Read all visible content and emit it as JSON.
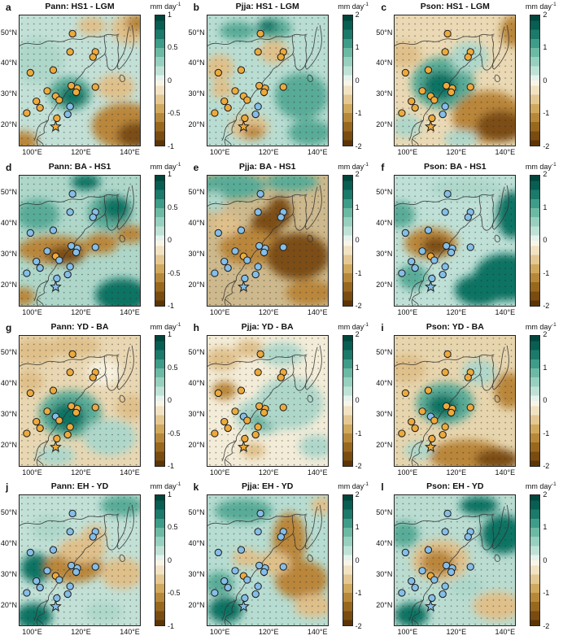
{
  "figure": {
    "x_ticks": [
      "100°E",
      "120°E",
      "140°E"
    ],
    "y_ticks": [
      "50°N",
      "40°N",
      "30°N",
      "20°N"
    ],
    "colorbar_unit": "mm day",
    "colorbar_exponent": "-1",
    "marker_colors": {
      "orange": "#edaa3c",
      "blue": "#85bee8",
      "outline": "#1a1a1a"
    },
    "field_colors": {
      "t3": "#0f7364",
      "t2": "#58ab97",
      "t1": "#aed7ca",
      "c": "#f6f1df",
      "n1": "#dfc08a",
      "n2": "#b9863b",
      "n3": "#7c4e14"
    },
    "sites": [
      [
        44,
        14
      ],
      [
        42,
        28
      ],
      [
        63,
        28
      ],
      [
        61,
        32
      ],
      [
        9,
        44
      ],
      [
        28,
        42
      ],
      [
        43,
        54
      ],
      [
        48,
        56
      ],
      [
        30,
        62
      ],
      [
        33,
        65
      ],
      [
        14,
        66
      ],
      [
        17,
        71
      ],
      [
        6,
        75
      ],
      [
        42,
        70
      ],
      [
        40,
        76
      ],
      [
        23,
        58
      ],
      [
        63,
        55
      ],
      [
        47,
        59
      ],
      [
        31,
        79
      ]
    ],
    "star_site": [
      30,
      85.5
    ],
    "panels": [
      {
        "letter": "a",
        "title": "Pann: HS1 - LGM",
        "cbar_ticks": [
          "1",
          "0.5",
          "0",
          "-0.5",
          "-1"
        ],
        "dot_color": "orange",
        "exceptions": {
          "13": "blue",
          "14": "blue"
        },
        "star_color": "orange",
        "field": {
          "base": "#c3e0d7",
          "blobs": [
            [
              60,
              8,
              12,
              7,
              "n1"
            ],
            [
              92,
              10,
              16,
              12,
              "n1"
            ],
            [
              98,
              6,
              10,
              7,
              "n2"
            ],
            [
              15,
              35,
              22,
              18,
              "t1"
            ],
            [
              42,
              60,
              18,
              13,
              "t2"
            ],
            [
              44,
              62,
              11,
              8,
              "t3"
            ],
            [
              80,
              55,
              16,
              10,
              "n1"
            ],
            [
              88,
              85,
              28,
              18,
              "n2"
            ],
            [
              97,
              92,
              16,
              10,
              "n3"
            ],
            [
              3,
              97,
              12,
              8,
              "n2"
            ]
          ]
        }
      },
      {
        "letter": "b",
        "title": "Pjja: HS1 - LGM",
        "cbar_ticks": [
          "2",
          "1",
          "0",
          "-1",
          "-2"
        ],
        "dot_color": "orange",
        "exceptions": {
          "13": "blue",
          "14": "blue"
        },
        "star_color": "orange",
        "field": {
          "base": "#b9ddd2",
          "blobs": [
            [
              10,
              40,
              12,
              10,
              "n1"
            ],
            [
              12,
              57,
              9,
              7,
              "n1"
            ],
            [
              55,
              28,
              12,
              9,
              "n1"
            ],
            [
              35,
              86,
              16,
              10,
              "n1"
            ],
            [
              38,
              90,
              9,
              5,
              "n2"
            ],
            [
              55,
              10,
              15,
              8,
              "t2"
            ],
            [
              50,
              8,
              8,
              5,
              "t3"
            ],
            [
              78,
              62,
              22,
              18,
              "t2"
            ],
            [
              85,
              90,
              18,
              10,
              "t2"
            ],
            [
              25,
              12,
              15,
              7,
              "t2"
            ]
          ]
        }
      },
      {
        "letter": "c",
        "title": "Pson: HS1 - LGM",
        "cbar_ticks": [
          "2",
          "1",
          "0",
          "-1",
          "-2"
        ],
        "dot_color": "orange",
        "exceptions": {
          "13": "blue",
          "14": "blue"
        },
        "star_color": "orange",
        "field": {
          "base": "#ead9b4",
          "blobs": [
            [
              40,
              52,
              26,
              20,
              "t2"
            ],
            [
              38,
              54,
              14,
              11,
              "t3"
            ],
            [
              62,
              32,
              16,
              12,
              "t1"
            ],
            [
              78,
              78,
              30,
              20,
              "n2"
            ],
            [
              88,
              85,
              20,
              12,
              "n3"
            ],
            [
              98,
              12,
              10,
              12,
              "n2"
            ],
            [
              8,
              30,
              14,
              10,
              "n1"
            ],
            [
              10,
              85,
              12,
              9,
              "t1"
            ],
            [
              55,
              95,
              14,
              7,
              "t1"
            ]
          ]
        }
      },
      {
        "letter": "d",
        "title": "Pann: BA - HS1",
        "cbar_ticks": [
          "1",
          "0.5",
          "0",
          "-0.5",
          "-1"
        ],
        "dot_color": "blue",
        "exceptions": {
          "8": "orange"
        },
        "star_color": "blue",
        "field": {
          "base": "#aed7ca",
          "blobs": [
            [
              75,
              28,
              18,
              14,
              "t2"
            ],
            [
              80,
              25,
              12,
              9,
              "t3"
            ],
            [
              55,
              5,
              12,
              6,
              "t3"
            ],
            [
              28,
              57,
              30,
              11,
              "n2"
            ],
            [
              38,
              61,
              15,
              7,
              "n3"
            ],
            [
              68,
              52,
              14,
              8,
              "n2"
            ],
            [
              92,
              45,
              12,
              7,
              "n2"
            ],
            [
              85,
              92,
              22,
              13,
              "t3"
            ],
            [
              3,
              93,
              10,
              7,
              "n2"
            ],
            [
              15,
              30,
              18,
              12,
              "t2"
            ]
          ]
        }
      },
      {
        "letter": "e",
        "title": "Pjja: BA - HS1",
        "cbar_ticks": [
          "2",
          "1",
          "0",
          "-1",
          "-2"
        ],
        "dot_color": "blue",
        "exceptions": {
          "8": "orange"
        },
        "star_color": "blue",
        "field": {
          "base": "#cdb98d",
          "blobs": [
            [
              20,
              8,
              28,
              10,
              "t2"
            ],
            [
              70,
              5,
              22,
              7,
              "t2"
            ],
            [
              5,
              20,
              10,
              8,
              "t1"
            ],
            [
              48,
              40,
              12,
              14,
              "n3"
            ],
            [
              60,
              28,
              10,
              12,
              "n3"
            ],
            [
              35,
              55,
              25,
              14,
              "n2"
            ],
            [
              75,
              62,
              26,
              18,
              "n3"
            ],
            [
              85,
              90,
              20,
              10,
              "n2"
            ],
            [
              15,
              38,
              12,
              9,
              "n1"
            ]
          ]
        }
      },
      {
        "letter": "f",
        "title": "Pson: BA - HS1",
        "cbar_ticks": [
          "2",
          "1",
          "0",
          "-1",
          "-2"
        ],
        "dot_color": "blue",
        "exceptions": {
          "8": "orange"
        },
        "star_color": "blue",
        "field": {
          "base": "#bfe0d6",
          "blobs": [
            [
              30,
              52,
              22,
              12,
              "n2"
            ],
            [
              34,
              54,
              11,
              7,
              "n3"
            ],
            [
              92,
              78,
              26,
              18,
              "t3"
            ],
            [
              70,
              88,
              20,
              12,
              "t3"
            ],
            [
              97,
              30,
              12,
              18,
              "t3"
            ],
            [
              15,
              78,
              12,
              10,
              "t2"
            ],
            [
              60,
              10,
              30,
              8,
              "t1"
            ],
            [
              5,
              30,
              12,
              10,
              "t2"
            ]
          ]
        }
      },
      {
        "letter": "g",
        "title": "Pann: YD - BA",
        "cbar_ticks": [
          "1",
          "0.5",
          "0",
          "-0.5",
          "-1"
        ],
        "dot_color": "orange",
        "exceptions": {
          "8": "blue"
        },
        "star_color": "orange",
        "field": {
          "base": "#e8d7b2",
          "blobs": [
            [
              12,
              12,
              18,
              10,
              "n1"
            ],
            [
              45,
              8,
              22,
              8,
              "n1"
            ],
            [
              8,
              35,
              12,
              9,
              "n1"
            ],
            [
              42,
              60,
              26,
              18,
              "t2"
            ],
            [
              40,
              62,
              14,
              11,
              "t3"
            ],
            [
              75,
              78,
              22,
              14,
              "t1"
            ],
            [
              92,
              55,
              12,
              10,
              "n1"
            ],
            [
              70,
              28,
              14,
              10,
              "c"
            ],
            [
              30,
              92,
              16,
              8,
              "t1"
            ]
          ]
        }
      },
      {
        "letter": "h",
        "title": "Pjja: YD - BA",
        "cbar_ticks": [
          "2",
          "1",
          "0",
          "-1",
          "-2"
        ],
        "dot_color": "orange",
        "exceptions": {
          "8": "blue"
        },
        "star_color": "orange",
        "field": {
          "base": "#f3ecd8",
          "blobs": [
            [
              12,
              18,
              14,
              9,
              "n1"
            ],
            [
              35,
              10,
              12,
              7,
              "n1"
            ],
            [
              14,
              42,
              10,
              7,
              "n2"
            ],
            [
              45,
              62,
              22,
              14,
              "t1"
            ],
            [
              48,
              64,
              12,
              8,
              "t2"
            ],
            [
              68,
              52,
              28,
              20,
              "t1"
            ],
            [
              62,
              14,
              18,
              9,
              "t1"
            ],
            [
              38,
              88,
              10,
              6,
              "n1"
            ],
            [
              90,
              85,
              14,
              9,
              "t1"
            ]
          ]
        }
      },
      {
        "letter": "i",
        "title": "Pson: YD - BA",
        "cbar_ticks": [
          "2",
          "1",
          "0",
          "-1",
          "-2"
        ],
        "dot_color": "orange",
        "exceptions": {
          "8": "blue"
        },
        "star_color": "orange",
        "field": {
          "base": "#e7d5ae",
          "blobs": [
            [
              42,
              52,
              24,
              16,
              "t2"
            ],
            [
              40,
              54,
              13,
              9,
              "t3"
            ],
            [
              60,
              92,
              32,
              12,
              "n2"
            ],
            [
              85,
              95,
              18,
              8,
              "n3"
            ],
            [
              95,
              42,
              12,
              14,
              "n2"
            ],
            [
              10,
              25,
              16,
              11,
              "n1"
            ],
            [
              70,
              28,
              14,
              10,
              "t1"
            ],
            [
              20,
              88,
              12,
              7,
              "t1"
            ]
          ]
        }
      },
      {
        "letter": "j",
        "title": "Pann: EH - YD",
        "cbar_ticks": [
          "1",
          "0.5",
          "0",
          "-0.5",
          "-1"
        ],
        "dot_color": "blue",
        "exceptions": {
          "8": "orange"
        },
        "star_color": "blue",
        "field": {
          "base": "#c2e0d6",
          "blobs": [
            [
              14,
              56,
              13,
              11,
              "t3"
            ],
            [
              12,
              93,
              15,
              10,
              "t3"
            ],
            [
              45,
              55,
              24,
              12,
              "n2"
            ],
            [
              52,
              42,
              20,
              10,
              "n1"
            ],
            [
              62,
              30,
              10,
              7,
              "n1"
            ],
            [
              85,
              60,
              18,
              12,
              "n1"
            ],
            [
              85,
              8,
              18,
              8,
              "t2"
            ],
            [
              25,
              25,
              15,
              10,
              "t1"
            ],
            [
              70,
              90,
              15,
              8,
              "t1"
            ]
          ]
        }
      },
      {
        "letter": "k",
        "title": "Pjja: EH - YD",
        "cbar_ticks": [
          "2",
          "1",
          "0",
          "-1",
          "-2"
        ],
        "dot_color": "blue",
        "exceptions": {
          "8": "orange"
        },
        "star_color": "blue",
        "field": {
          "base": "#b7dcd1",
          "blobs": [
            [
              68,
              35,
              14,
              22,
              "n2"
            ],
            [
              78,
              65,
              22,
              15,
              "n2"
            ],
            [
              88,
              85,
              16,
              9,
              "n1"
            ],
            [
              55,
              52,
              14,
              9,
              "n1"
            ],
            [
              32,
              48,
              11,
              7,
              "n1"
            ],
            [
              15,
              88,
              14,
              10,
              "t3"
            ],
            [
              10,
              68,
              12,
              9,
              "t2"
            ],
            [
              30,
              12,
              24,
              9,
              "t2"
            ],
            [
              95,
              8,
              9,
              7,
              "n1"
            ]
          ]
        }
      },
      {
        "letter": "l",
        "title": "Pson: EH - YD",
        "cbar_ticks": [
          "2",
          "1",
          "0",
          "-1",
          "-2"
        ],
        "dot_color": "blue",
        "exceptions": {
          "8": "orange"
        },
        "star_color": "blue",
        "field": {
          "base": "#badcd1",
          "blobs": [
            [
              38,
              50,
              24,
              16,
              "n1"
            ],
            [
              36,
              52,
              14,
              10,
              "n2"
            ],
            [
              85,
              85,
              20,
              11,
              "n1"
            ],
            [
              90,
              30,
              18,
              15,
              "t3"
            ],
            [
              70,
              8,
              16,
              7,
              "t3"
            ],
            [
              14,
              92,
              14,
              9,
              "t3"
            ],
            [
              8,
              30,
              12,
              10,
              "t2"
            ],
            [
              60,
              70,
              14,
              8,
              "t1"
            ]
          ]
        }
      }
    ]
  }
}
